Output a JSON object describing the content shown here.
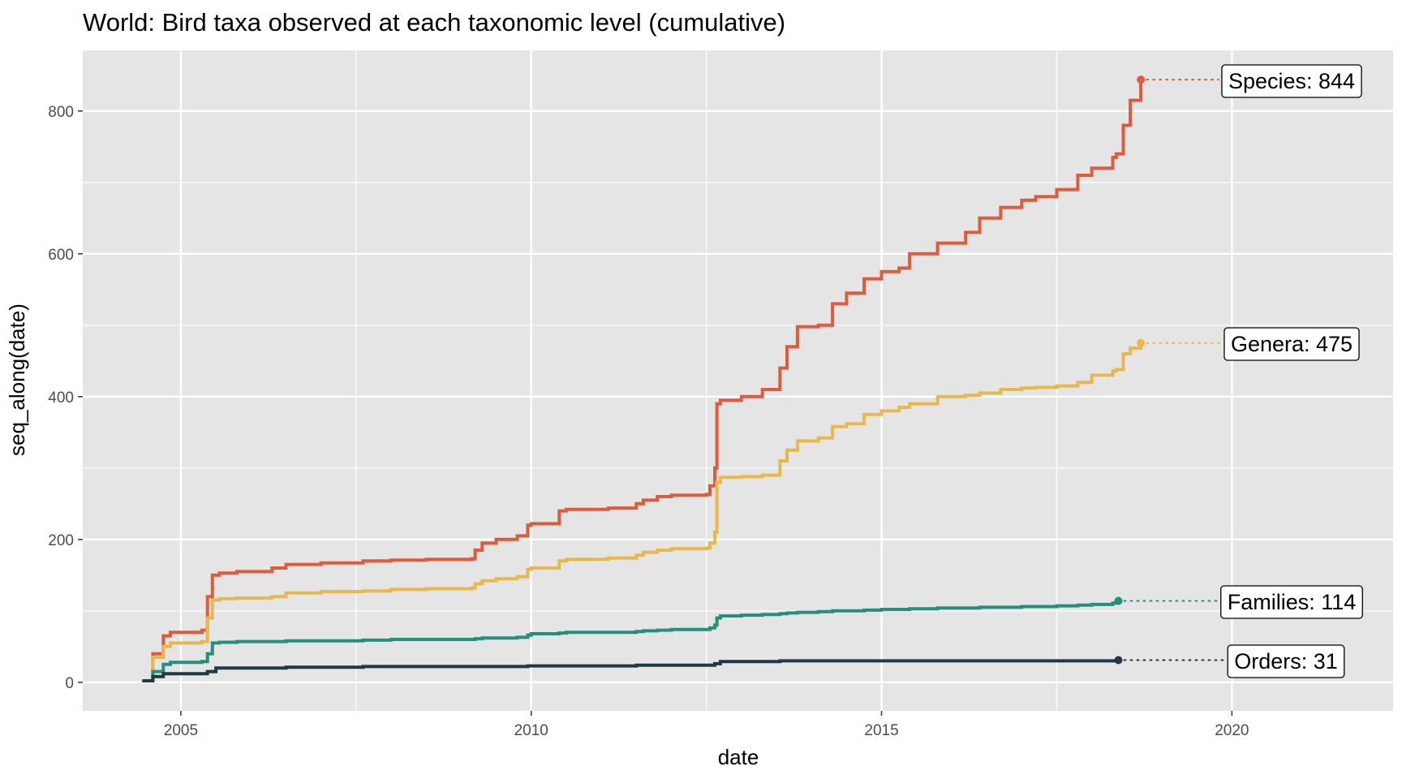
{
  "chart_data": {
    "type": "line",
    "title": "World: Bird taxa observed at each taxonomic level (cumulative)",
    "xlabel": "date",
    "ylabel": "seq_along(date)",
    "xlim": [
      2003.6,
      2022.3
    ],
    "ylim": [
      -40,
      885
    ],
    "x_ticks": [
      2005,
      2010,
      2015,
      2020
    ],
    "y_ticks": [
      0,
      200,
      400,
      600,
      800
    ],
    "grid": true,
    "legend": "none",
    "colors": {
      "panel": "#e5e5e5",
      "grid": "#ffffff",
      "species": "#de5b3e",
      "genera": "#e8b84f",
      "families": "#268f7c",
      "orders": "#1f3a46"
    },
    "series": [
      {
        "key": "species",
        "label": "Species: 844",
        "end_value": 844,
        "x": [
          2004.45,
          2004.6,
          2004.75,
          2004.85,
          2005.3,
          2005.38,
          2005.45,
          2005.55,
          2005.8,
          2006.3,
          2006.5,
          2007.0,
          2007.6,
          2008.0,
          2008.5,
          2009.15,
          2009.2,
          2009.3,
          2009.5,
          2009.8,
          2009.95,
          2010.0,
          2010.4,
          2010.5,
          2011.1,
          2011.5,
          2011.6,
          2011.8,
          2012.0,
          2012.5,
          2012.55,
          2012.62,
          2012.65,
          2012.7,
          2013.0,
          2013.3,
          2013.55,
          2013.65,
          2013.8,
          2014.1,
          2014.3,
          2014.5,
          2014.75,
          2015.0,
          2015.25,
          2015.4,
          2015.8,
          2016.2,
          2016.4,
          2016.7,
          2017.0,
          2017.2,
          2017.5,
          2017.8,
          2018.0,
          2018.3,
          2018.35,
          2018.45,
          2018.55,
          2018.7
        ],
        "y": [
          2,
          40,
          65,
          70,
          73,
          120,
          150,
          153,
          155,
          160,
          165,
          167,
          170,
          171,
          172,
          173,
          185,
          195,
          200,
          205,
          220,
          222,
          240,
          242,
          244,
          250,
          255,
          260,
          262,
          263,
          275,
          300,
          390,
          395,
          400,
          410,
          440,
          470,
          498,
          500,
          530,
          545,
          565,
          575,
          580,
          600,
          615,
          630,
          650,
          665,
          675,
          680,
          690,
          710,
          720,
          735,
          740,
          780,
          815,
          844
        ]
      },
      {
        "key": "genera",
        "label": "Genera: 475",
        "end_value": 475,
        "x": [
          2004.45,
          2004.6,
          2004.75,
          2004.85,
          2005.3,
          2005.38,
          2005.45,
          2005.55,
          2005.8,
          2006.3,
          2006.5,
          2007.0,
          2007.6,
          2008.0,
          2008.5,
          2009.15,
          2009.2,
          2009.3,
          2009.5,
          2009.8,
          2009.95,
          2010.0,
          2010.4,
          2010.5,
          2011.1,
          2011.5,
          2011.6,
          2011.8,
          2012.0,
          2012.5,
          2012.55,
          2012.62,
          2012.65,
          2012.7,
          2013.0,
          2013.3,
          2013.55,
          2013.65,
          2013.8,
          2014.1,
          2014.3,
          2014.5,
          2014.75,
          2015.0,
          2015.25,
          2015.4,
          2015.8,
          2016.2,
          2016.4,
          2016.7,
          2017.0,
          2017.2,
          2017.5,
          2017.8,
          2018.0,
          2018.3,
          2018.35,
          2018.45,
          2018.55,
          2018.7
        ],
        "y": [
          2,
          35,
          50,
          55,
          57,
          90,
          115,
          117,
          118,
          120,
          125,
          127,
          128,
          130,
          131,
          132,
          138,
          142,
          145,
          148,
          158,
          160,
          170,
          172,
          174,
          178,
          182,
          185,
          187,
          188,
          195,
          210,
          280,
          287,
          288,
          290,
          310,
          325,
          338,
          342,
          358,
          362,
          375,
          380,
          385,
          390,
          400,
          402,
          405,
          410,
          412,
          413,
          415,
          420,
          430,
          436,
          438,
          460,
          468,
          475
        ]
      },
      {
        "key": "families",
        "label": "Families: 114",
        "end_value": 114,
        "x": [
          2004.45,
          2004.6,
          2004.75,
          2004.85,
          2005.3,
          2005.38,
          2005.45,
          2005.55,
          2005.8,
          2006.3,
          2006.5,
          2007.0,
          2007.6,
          2008.0,
          2008.5,
          2009.15,
          2009.2,
          2009.3,
          2009.5,
          2009.8,
          2009.95,
          2010.0,
          2010.4,
          2010.5,
          2011.1,
          2011.5,
          2011.6,
          2011.8,
          2012.0,
          2012.5,
          2012.55,
          2012.62,
          2012.65,
          2012.7,
          2013.0,
          2013.3,
          2013.55,
          2013.65,
          2013.8,
          2014.1,
          2014.3,
          2014.5,
          2014.75,
          2015.0,
          2015.25,
          2015.4,
          2015.8,
          2016.2,
          2016.4,
          2016.7,
          2017.0,
          2017.2,
          2017.5,
          2017.8,
          2018.0,
          2018.3,
          2018.38
        ],
        "y": [
          2,
          15,
          25,
          28,
          29,
          40,
          55,
          56,
          57,
          57,
          58,
          58,
          59,
          60,
          60,
          60,
          61,
          62,
          62,
          63,
          66,
          68,
          69,
          70,
          70,
          71,
          72,
          73,
          74,
          74,
          76,
          80,
          90,
          93,
          94,
          95,
          96,
          97,
          98,
          99,
          100,
          100,
          101,
          102,
          102,
          103,
          104,
          104,
          105,
          105,
          106,
          106,
          107,
          108,
          109,
          111,
          114
        ]
      },
      {
        "key": "orders",
        "label": "Orders: 31",
        "end_value": 31,
        "x": [
          2004.45,
          2004.6,
          2004.75,
          2005.38,
          2005.5,
          2006.5,
          2007.6,
          2009.95,
          2011.5,
          2012.62,
          2012.7,
          2013.55,
          2018.38
        ],
        "y": [
          2,
          8,
          12,
          15,
          20,
          21,
          22,
          23,
          24,
          26,
          29,
          30,
          31
        ]
      }
    ]
  }
}
